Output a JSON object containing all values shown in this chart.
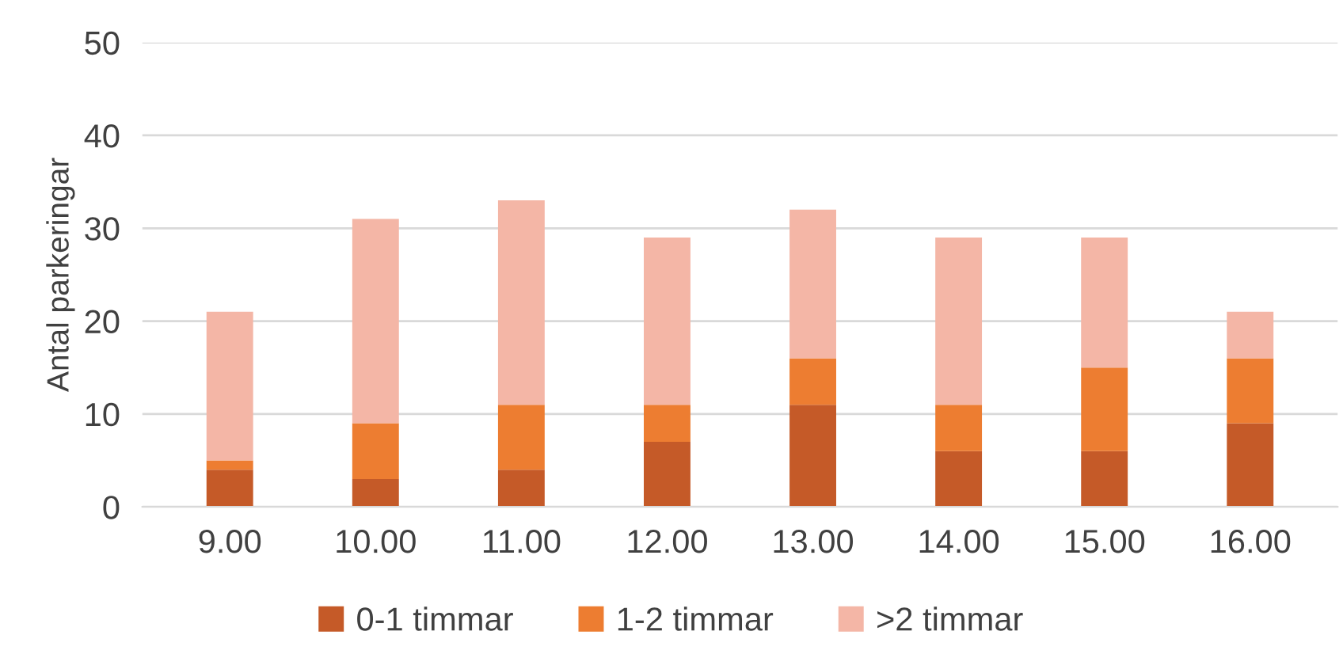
{
  "chart_data": {
    "type": "bar",
    "stacked": true,
    "ylabel": "Antal parkeringar",
    "categories": [
      "9.00",
      "10.00",
      "11.00",
      "12.00",
      "13.00",
      "14.00",
      "15.00",
      "16.00"
    ],
    "series": [
      {
        "name": "0-1 timmar",
        "color": "#c55a28",
        "values": [
          4,
          3,
          4,
          7,
          11,
          6,
          6,
          9
        ]
      },
      {
        "name": "1-2 timmar",
        "color": "#ed7d31",
        "values": [
          1,
          6,
          7,
          4,
          5,
          5,
          9,
          7
        ]
      },
      {
        "name": ">2 timmar",
        "color": "#f4b6a6",
        "values": [
          16,
          22,
          22,
          18,
          16,
          18,
          14,
          5
        ]
      }
    ],
    "ylim": [
      0,
      50
    ],
    "yticks": [
      0,
      10,
      20,
      30,
      40,
      50
    ],
    "grid": "y",
    "legend": "bottom"
  }
}
